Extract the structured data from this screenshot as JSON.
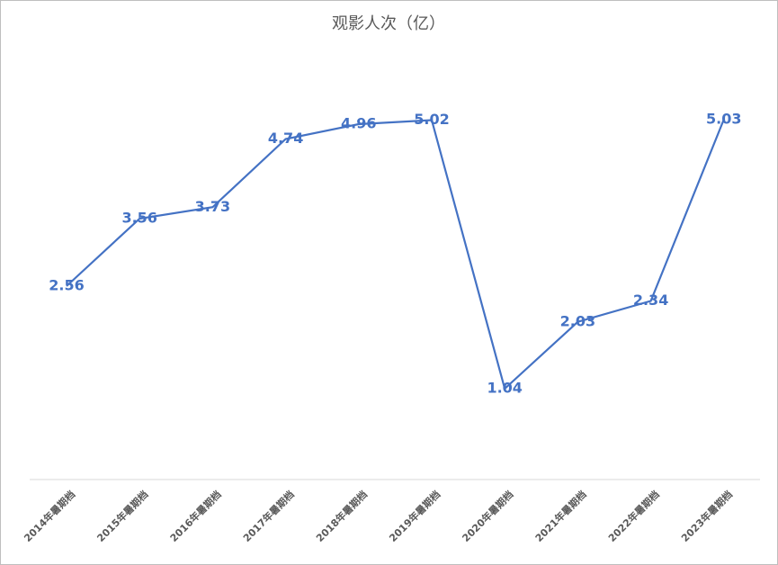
{
  "chart_data": {
    "type": "line",
    "title": "观影人次（亿）",
    "categories": [
      "2014年暑期档",
      "2015年暑期档",
      "2016年暑期档",
      "2017年暑期档",
      "2018年暑期档",
      "2019年暑期档",
      "2020年暑期档",
      "2021年暑期档",
      "2022年暑期档",
      "2023年暑期档"
    ],
    "values": [
      2.56,
      3.56,
      3.73,
      4.74,
      4.96,
      5.02,
      1.04,
      2.03,
      2.34,
      5.03
    ],
    "color": "#4472c4",
    "ylim": [
      0,
      6
    ]
  }
}
